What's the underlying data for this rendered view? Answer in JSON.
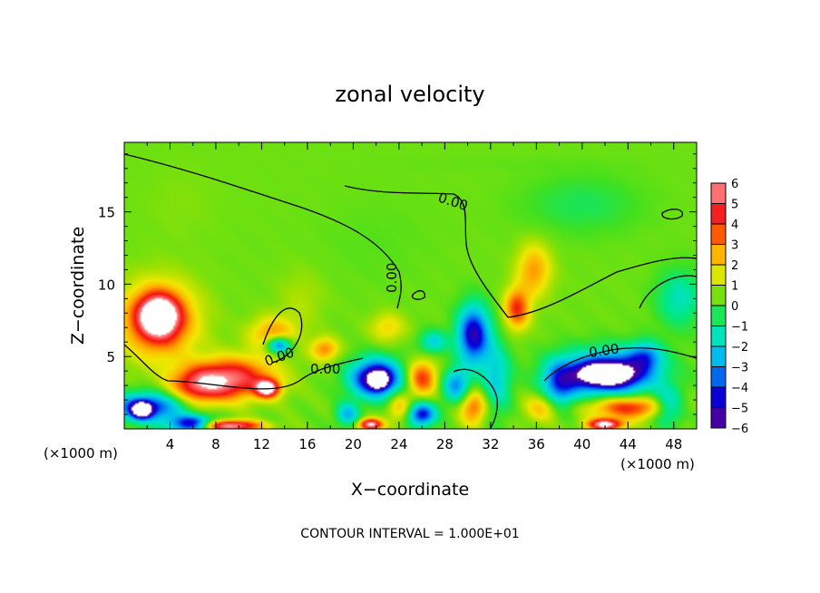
{
  "chart_data": {
    "type": "heatmap",
    "title": "zonal velocity",
    "xlabel": "X−coordinate",
    "ylabel": "Z−coordinate",
    "x_unit_left": "(×1000 m)",
    "x_unit_right": "(×1000 m)",
    "footer": "CONTOUR INTERVAL = 1.000E+01",
    "xlim": [
      0,
      50
    ],
    "ylim": [
      0,
      19.8
    ],
    "x_ticks": [
      4,
      8,
      12,
      16,
      20,
      24,
      28,
      32,
      36,
      40,
      44,
      48
    ],
    "y_ticks": [
      5,
      10,
      15
    ],
    "colorbar": {
      "range": [
        -6,
        6
      ],
      "tick_labels": [
        "6",
        "5",
        "4",
        "3",
        "2",
        "1",
        "0",
        "−1",
        "−2",
        "−3",
        "−4",
        "−5",
        "−6"
      ],
      "colors": [
        "#600090",
        "#3000b0",
        "#0000e0",
        "#0070f0",
        "#00b8f0",
        "#00e0d0",
        "#00e880",
        "#40e020",
        "#a0e000",
        "#f0e800",
        "#ffb000",
        "#ff6000",
        "#f01010",
        "#ff5050",
        "#ffa0a0"
      ]
    },
    "contour_labels": [
      "0.00",
      "0.00",
      "0.00",
      "0.00",
      "0.00"
    ],
    "background_value": 0.4,
    "features": [
      {
        "x": 3,
        "z": 7.8,
        "value": 6.5,
        "rx": 1.6,
        "rz": 1.3
      },
      {
        "x": 3,
        "z": 7.5,
        "value": 4.5,
        "rx": 3.2,
        "rz": 2.5
      },
      {
        "x": 9.5,
        "z": 3.5,
        "value": 5.0,
        "rx": 3.5,
        "rz": 1.4
      },
      {
        "x": 12.5,
        "z": 2.8,
        "value": 6.5,
        "rx": 1.0,
        "rz": 0.6
      },
      {
        "x": 6.5,
        "z": 3.0,
        "value": 4.0,
        "rx": 2.5,
        "rz": 1.2
      },
      {
        "x": 2,
        "z": 1.5,
        "value": -4.5,
        "rx": 3.0,
        "rz": 1.0
      },
      {
        "x": 1.5,
        "z": 1.3,
        "value": -6.5,
        "rx": 0.8,
        "rz": 0.5
      },
      {
        "x": 6,
        "z": 0.3,
        "value": -5.5,
        "rx": 2.0,
        "rz": 0.6
      },
      {
        "x": 9,
        "z": 0.2,
        "value": 6.5,
        "rx": 2.8,
        "rz": 0.4
      },
      {
        "x": 13.5,
        "z": 5.8,
        "value": -4.5,
        "rx": 1.1,
        "rz": 0.6
      },
      {
        "x": 13,
        "z": 6.5,
        "value": 3.0,
        "rx": 2.0,
        "rz": 1.2
      },
      {
        "x": 17.5,
        "z": 5.5,
        "value": 3.0,
        "rx": 1.2,
        "rz": 0.8
      },
      {
        "x": 22,
        "z": 3.5,
        "value": -6.0,
        "rx": 2.2,
        "rz": 1.3
      },
      {
        "x": 22.2,
        "z": 3.4,
        "value": -6.6,
        "rx": 0.7,
        "rz": 0.5
      },
      {
        "x": 26,
        "z": 3.5,
        "value": 4.0,
        "rx": 1.3,
        "rz": 1.2
      },
      {
        "x": 26,
        "z": 1.0,
        "value": -4.5,
        "rx": 1.2,
        "rz": 0.8
      },
      {
        "x": 24,
        "z": 1.5,
        "value": 2.5,
        "rx": 1.0,
        "rz": 1.0
      },
      {
        "x": 21.5,
        "z": 0.3,
        "value": 6.5,
        "rx": 1.0,
        "rz": 0.4
      },
      {
        "x": 19.5,
        "z": 1.0,
        "value": -2.5,
        "rx": 1.0,
        "rz": 0.8
      },
      {
        "x": 30.5,
        "z": 6.5,
        "value": -5.0,
        "rx": 1.4,
        "rz": 2.0
      },
      {
        "x": 29,
        "z": 3.0,
        "value": -3.0,
        "rx": 1.2,
        "rz": 1.2
      },
      {
        "x": 30.5,
        "z": 1.5,
        "value": 3.5,
        "rx": 1.2,
        "rz": 1.2
      },
      {
        "x": 32.5,
        "z": 3.5,
        "value": -2.0,
        "rx": 1.3,
        "rz": 2.5
      },
      {
        "x": 34.3,
        "z": 8.3,
        "value": 4.0,
        "rx": 1.1,
        "rz": 1.4
      },
      {
        "x": 35.8,
        "z": 11.0,
        "value": 2.8,
        "rx": 1.5,
        "rz": 1.8
      },
      {
        "x": 36.5,
        "z": 1.5,
        "value": 2.5,
        "rx": 1.5,
        "rz": 1.0
      },
      {
        "x": 38,
        "z": 3.0,
        "value": -3.0,
        "rx": 1.5,
        "rz": 1.6
      },
      {
        "x": 42.3,
        "z": 3.8,
        "value": -5.0,
        "rx": 4.2,
        "rz": 1.6
      },
      {
        "x": 42,
        "z": 3.8,
        "value": -6.6,
        "rx": 2.2,
        "rz": 0.7
      },
      {
        "x": 44,
        "z": 1.5,
        "value": 4.5,
        "rx": 3.5,
        "rz": 0.8
      },
      {
        "x": 42,
        "z": 0.3,
        "value": 6.5,
        "rx": 1.5,
        "rz": 0.4
      },
      {
        "x": 47.5,
        "z": 1.5,
        "value": -2.5,
        "rx": 1.3,
        "rz": 1.2
      },
      {
        "x": 45.5,
        "z": 5.0,
        "value": -2.5,
        "rx": 1.5,
        "rz": 1.0
      },
      {
        "x": 48.5,
        "z": 9.0,
        "value": -1.5,
        "rx": 2.0,
        "rz": 2.0
      },
      {
        "x": 5,
        "z": 15.5,
        "value": 0.6,
        "rx": 3.0,
        "rz": 2.5
      },
      {
        "x": 22,
        "z": 13.0,
        "value": 0.2,
        "rx": 5.0,
        "rz": 3.0
      },
      {
        "x": 40,
        "z": 15.5,
        "value": -0.5,
        "rx": 5.0,
        "rz": 2.0
      },
      {
        "x": 34,
        "z": 18.3,
        "value": 0.3,
        "rx": 10.0,
        "rz": 0.5
      },
      {
        "x": 15.5,
        "z": 9.0,
        "value": 1.0,
        "rx": 2.0,
        "rz": 2.0
      },
      {
        "x": 23,
        "z": 7.0,
        "value": 2.0,
        "rx": 1.5,
        "rz": 1.0
      },
      {
        "x": 27,
        "z": 6.0,
        "value": -2.0,
        "rx": 1.2,
        "rz": 0.8
      }
    ]
  }
}
